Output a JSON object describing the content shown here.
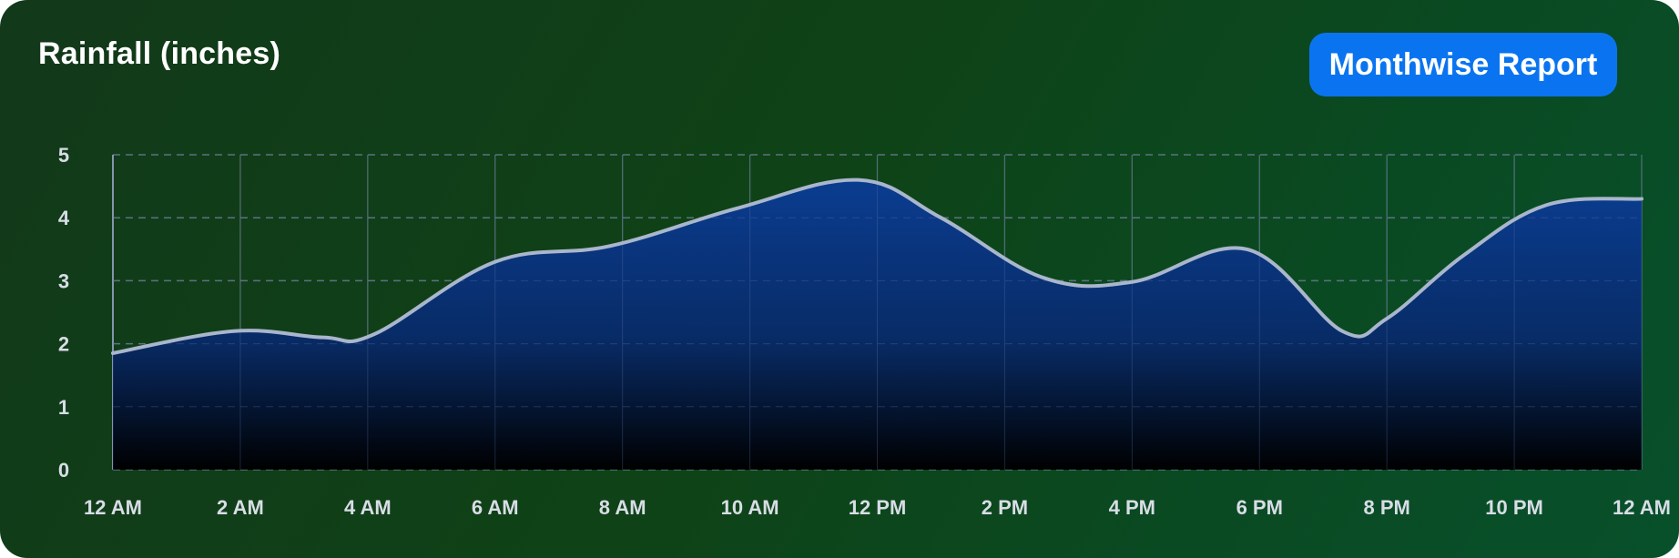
{
  "header": {
    "title": "Rainfall (inches)",
    "report_button_label": "Monthwise Report"
  },
  "colors": {
    "line": "#a9b6cc",
    "fill_top": "#0a3c96",
    "fill_bottom": "#000000",
    "grid": "#7a8a9a",
    "button": "#0a74f0"
  },
  "chart_data": {
    "type": "area",
    "title": "Rainfall (inches)",
    "xlabel": "",
    "ylabel": "",
    "x_tick_labels": [
      "12 AM",
      "2 AM",
      "4 AM",
      "6 AM",
      "8 AM",
      "10 AM",
      "12 PM",
      "2 PM",
      "4 PM",
      "6 PM",
      "8 PM",
      "10 PM",
      "12 AM"
    ],
    "y_tick_labels": [
      "0",
      "1",
      "2",
      "3",
      "4",
      "5"
    ],
    "ylim": [
      0,
      5
    ],
    "xlim": [
      0,
      24
    ],
    "grid": true,
    "smooth": true,
    "series": [
      {
        "x": [
          0,
          1.9,
          3.3,
          4.1,
          6,
          7.8,
          9.8,
          11.7,
          13,
          14.6,
          16,
          17.8,
          19.3,
          20,
          21.2,
          22.5,
          24
        ],
        "values": [
          1.85,
          2.2,
          2.1,
          2.15,
          3.3,
          3.55,
          4.15,
          4.6,
          4.0,
          3.05,
          2.98,
          3.5,
          2.2,
          2.4,
          3.4,
          4.2,
          4.3
        ]
      }
    ]
  }
}
